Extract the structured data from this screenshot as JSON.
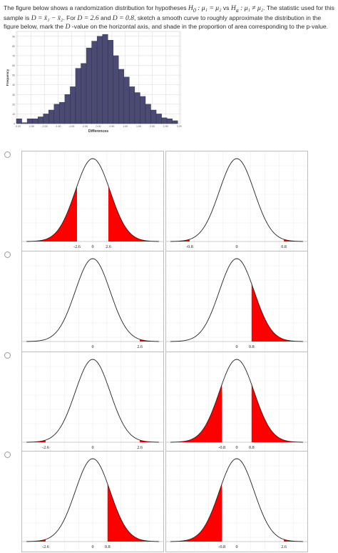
{
  "question": {
    "text_a": "The figure below shows a randomization distribution for hypotheses ",
    "h0": "H",
    "h0_sub": "0",
    "h0_rest": " : μ₁ = μ₂",
    "vs": " vs ",
    "ha": "H",
    "ha_sub": "a",
    "ha_rest": " : μ₁ ≠ μ₂",
    "text_b": ". The statistic used for this sample is ",
    "stat": "D = x̄₁ − x̄₂",
    "text_c": ". For ",
    "d1": "D = 2.6",
    "text_d": " and ",
    "d2": "D = 0.8",
    "text_e": ", sketch a smooth curve to roughly approximate the distribution in the figure below, mark the ",
    "dvar": "D",
    "text_f": " -value on the horizontal axis, and shade in the proportion of area corresponding to the p-value."
  },
  "histogram": {
    "xlabel": "Differences",
    "ylabel": "Frequency",
    "bar_color": "#4a4a72",
    "grid_color": "#d8d8d8",
    "xticks": [
      "-3.00",
      "-2.50",
      "-2.00",
      "-1.50",
      "-1.00",
      "-0.50",
      "0.00",
      "0.50",
      "1.00",
      "1.50",
      "2.00",
      "2.50",
      "3.00"
    ],
    "yticks": [
      "0",
      "10",
      "20",
      "30",
      "40",
      "50",
      "60",
      "70",
      "80",
      "90"
    ],
    "ymax": 95,
    "bins": [
      {
        "x": -2.95,
        "f": 5
      },
      {
        "x": -2.75,
        "f": 1
      },
      {
        "x": -2.55,
        "f": 5
      },
      {
        "x": -2.35,
        "f": 5
      },
      {
        "x": -2.15,
        "f": 7
      },
      {
        "x": -1.95,
        "f": 10
      },
      {
        "x": -1.75,
        "f": 14
      },
      {
        "x": -1.55,
        "f": 20
      },
      {
        "x": -1.35,
        "f": 22
      },
      {
        "x": -1.15,
        "f": 30
      },
      {
        "x": -0.95,
        "f": 38
      },
      {
        "x": -0.75,
        "f": 57
      },
      {
        "x": -0.55,
        "f": 62
      },
      {
        "x": -0.35,
        "f": 78
      },
      {
        "x": -0.15,
        "f": 85
      },
      {
        "x": 0.05,
        "f": 90
      },
      {
        "x": 0.25,
        "f": 92
      },
      {
        "x": 0.45,
        "f": 86
      },
      {
        "x": 0.65,
        "f": 70
      },
      {
        "x": 0.85,
        "f": 56
      },
      {
        "x": 1.05,
        "f": 48
      },
      {
        "x": 1.25,
        "f": 38
      },
      {
        "x": 1.45,
        "f": 32
      },
      {
        "x": 1.65,
        "f": 28
      },
      {
        "x": 1.85,
        "f": 20
      },
      {
        "x": 2.05,
        "f": 14
      },
      {
        "x": 2.25,
        "f": 10
      },
      {
        "x": 2.45,
        "f": 6
      },
      {
        "x": 2.65,
        "f": 5
      },
      {
        "x": 2.85,
        "f": 3
      }
    ]
  },
  "options": [
    {
      "left": {
        "labels": [
          "-2.6",
          "0",
          "2.6"
        ],
        "shade": "two-inner-2.6"
      },
      "right": {
        "labels": [
          "-0.8",
          "0",
          "0.8"
        ],
        "shade": "none-tail-tiny"
      }
    },
    {
      "left": {
        "labels": [
          "0",
          "2.6"
        ],
        "shade": "right-tiny"
      },
      "right": {
        "labels": [
          "0",
          "0.8"
        ],
        "shade": "right-0.8"
      }
    },
    {
      "left": {
        "labels": [
          "-2.6",
          "0",
          "2.6"
        ],
        "shade": "two-tiny"
      },
      "right": {
        "labels": [
          "-0.8",
          "0",
          "0.8"
        ],
        "shade": "two-0.8"
      }
    },
    {
      "left": {
        "labels": [
          "-2.6",
          "0",
          "0.8"
        ],
        "shade": "right-0.8-plus-left-tiny"
      },
      "right": {
        "labels": [
          "-0.8",
          "0",
          "2.6"
        ],
        "shade": "left-0.8-plus-right-tiny"
      }
    }
  ],
  "shade_color": "#ff0000"
}
